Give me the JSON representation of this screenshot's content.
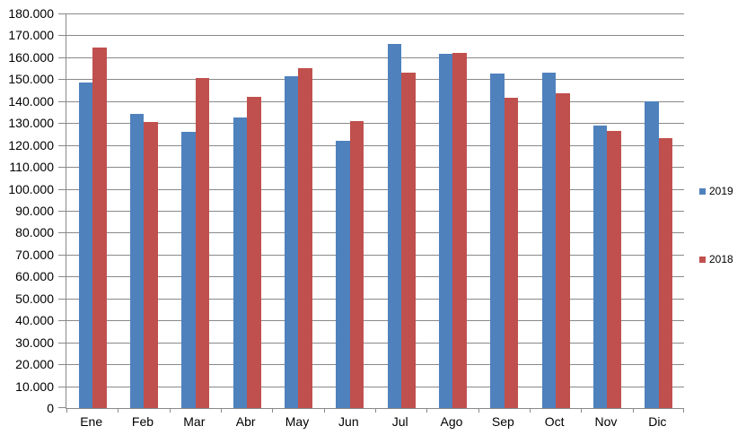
{
  "chart_data": {
    "type": "bar",
    "title": "",
    "xlabel": "",
    "ylabel": "",
    "categories": [
      "Ene",
      "Feb",
      "Mar",
      "Abr",
      "May",
      "Jun",
      "Jul",
      "Ago",
      "Sep",
      "Oct",
      "Nov",
      "Dic"
    ],
    "series": [
      {
        "name": "2019",
        "color": "#4F81BD",
        "values": [
          148500,
          134000,
          126000,
          132500,
          151500,
          122000,
          166000,
          161500,
          152500,
          153000,
          129000,
          140000
        ]
      },
      {
        "name": "2018",
        "color": "#C0504D",
        "values": [
          164500,
          130500,
          150500,
          142000,
          155000,
          131000,
          153000,
          162000,
          141500,
          143500,
          126500,
          123000
        ]
      }
    ],
    "ylim": [
      0,
      180000
    ],
    "y_step": 10000,
    "y_tick_labels": [
      "0",
      "10.000",
      "20.000",
      "30.000",
      "40.000",
      "50.000",
      "60.000",
      "70.000",
      "80.000",
      "90.000",
      "100.000",
      "110.000",
      "120.000",
      "130.000",
      "140.000",
      "150.000",
      "160.000",
      "170.000",
      "180.000"
    ],
    "grid": true,
    "legend_position": "right"
  },
  "colors": {
    "series_2019": "#4F81BD",
    "series_2018": "#C0504D",
    "gridline": "#898989",
    "axis": "#898989",
    "text": "#000000",
    "background": "#FFFFFF"
  }
}
